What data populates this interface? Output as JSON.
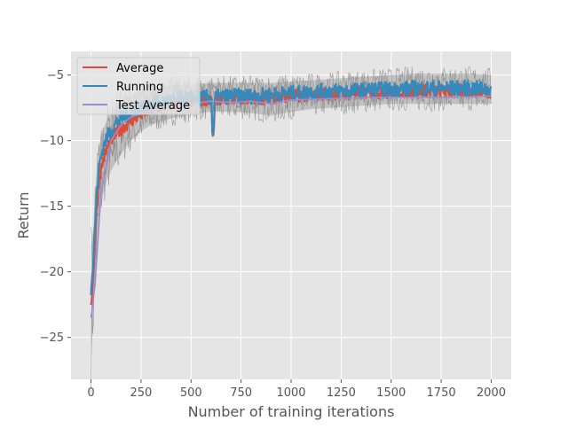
{
  "chart_data": {
    "type": "line",
    "xlabel": "Number of training iterations",
    "ylabel": "Return",
    "xlim": [
      -100,
      2100
    ],
    "ylim": [
      -28.2,
      -3.2
    ],
    "x_ticks": [
      0,
      250,
      500,
      750,
      1000,
      1250,
      1500,
      1750,
      2000
    ],
    "y_ticks": [
      -25,
      -20,
      -15,
      -10,
      -5
    ],
    "grid": true,
    "legend": {
      "position": "top-left",
      "entries": [
        "Average",
        "Running",
        "Test Average"
      ]
    },
    "series": [
      {
        "name": "Average",
        "color": "#e24a33",
        "style": "noisy-line",
        "x": [
          0,
          10,
          25,
          40,
          60,
          80,
          100,
          130,
          160,
          200,
          250,
          300,
          400,
          500,
          600,
          610,
          620,
          700,
          800,
          900,
          1000,
          1100,
          1200,
          1300,
          1400,
          1500,
          1600,
          1700,
          1800,
          1900,
          2000
        ],
        "y": [
          -22.5,
          -20.5,
          -16,
          -13,
          -11.5,
          -10.6,
          -10,
          -9.4,
          -9,
          -8.5,
          -8,
          -7.6,
          -7.2,
          -7,
          -6.8,
          -10.5,
          -6.8,
          -6.7,
          -6.8,
          -6.7,
          -6.6,
          -6.5,
          -6.4,
          -6.4,
          -6.3,
          -6.3,
          -6.2,
          -6.2,
          -6.2,
          -6.2,
          -6.3
        ],
        "noise": 0.5
      },
      {
        "name": "Running",
        "color": "#348abd",
        "style": "noisy-line",
        "x": [
          0,
          10,
          25,
          40,
          60,
          80,
          100,
          130,
          160,
          200,
          250,
          300,
          400,
          500,
          600,
          610,
          620,
          700,
          800,
          900,
          1000,
          1100,
          1200,
          1300,
          1400,
          1500,
          1600,
          1700,
          1800,
          1900,
          2000
        ],
        "y": [
          -21.5,
          -19.5,
          -15,
          -12,
          -10.5,
          -9.7,
          -9.2,
          -8.6,
          -8.2,
          -7.8,
          -7.5,
          -7.2,
          -7,
          -6.8,
          -6.7,
          -9.8,
          -6.7,
          -6.6,
          -6.6,
          -6.5,
          -6.4,
          -6.3,
          -6.2,
          -6.2,
          -6.1,
          -6.1,
          -6,
          -6,
          -6,
          -6,
          -6.1
        ],
        "noise": 0.6
      },
      {
        "name": "Test Average",
        "color": "#988ed5",
        "style": "smooth-line",
        "x": [
          0,
          20,
          50,
          100,
          150,
          200,
          300,
          400,
          500,
          600,
          700,
          800,
          900,
          1000,
          1200,
          1400,
          1600,
          1800,
          2000
        ],
        "y": [
          -23.5,
          -21,
          -14,
          -10,
          -8.8,
          -8.2,
          -7.7,
          -7.4,
          -7.2,
          -7,
          -7.1,
          -7,
          -7.2,
          -6.9,
          -6.8,
          -6.7,
          -6.7,
          -6.7,
          -6.6
        ]
      }
    ],
    "band": {
      "color": "#7f7f7f",
      "x": [
        0,
        10,
        25,
        40,
        60,
        80,
        100,
        130,
        160,
        200,
        250,
        300,
        400,
        500,
        600,
        700,
        800,
        900,
        1000,
        1100,
        1200,
        1300,
        1400,
        1500,
        1600,
        1700,
        1800,
        1900,
        2000
      ],
      "lower": [
        -27,
        -24,
        -19,
        -16,
        -14,
        -13,
        -12.3,
        -11.5,
        -10.8,
        -10,
        -9.3,
        -8.8,
        -8.3,
        -8,
        -7.8,
        -7.8,
        -7.9,
        -8.1,
        -7.8,
        -7.6,
        -7.5,
        -7.4,
        -7.3,
        -7.2,
        -7.2,
        -7.2,
        -7.2,
        -7.2,
        -7.2
      ],
      "upper": [
        -18,
        -17,
        -13,
        -10.5,
        -9.2,
        -8.4,
        -7.9,
        -7.3,
        -6.9,
        -6.5,
        -6.2,
        -6,
        -5.8,
        -5.7,
        -5.6,
        -5.6,
        -5.6,
        -5.6,
        -5.5,
        -5.4,
        -5.3,
        -5.2,
        -5.1,
        -5,
        -4.9,
        -4.9,
        -4.9,
        -4.9,
        -5
      ]
    }
  }
}
